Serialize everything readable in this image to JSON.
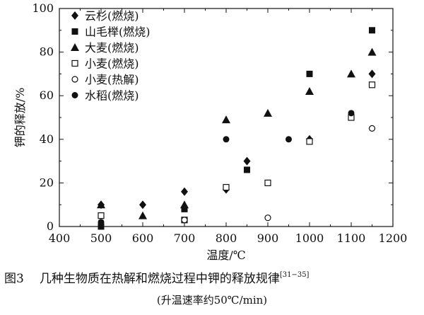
{
  "chart_data": {
    "type": "scatter",
    "title": "",
    "xlabel": "温度/℃",
    "ylabel": "钾的释放/%",
    "xlim": [
      400,
      1200
    ],
    "ylim": [
      0,
      100
    ],
    "xticks": [
      400,
      500,
      600,
      700,
      800,
      900,
      1000,
      1100,
      1200
    ],
    "yticks": [
      0,
      20,
      40,
      60,
      80,
      100
    ],
    "grid": false,
    "legend_position": "top-left",
    "series": [
      {
        "name": "云杉(燃烧)",
        "marker": "filled-diamond",
        "points": [
          [
            500,
            10
          ],
          [
            600,
            10
          ],
          [
            700,
            16
          ],
          [
            800,
            17
          ],
          [
            850,
            30
          ],
          [
            1000,
            40
          ],
          [
            1150,
            70
          ]
        ]
      },
      {
        "name": "山毛榉(燃烧)",
        "marker": "filled-square",
        "points": [
          [
            500,
            0
          ],
          [
            700,
            8
          ],
          [
            850,
            26
          ],
          [
            1000,
            70
          ],
          [
            1150,
            90
          ]
        ]
      },
      {
        "name": "大麦(燃烧)",
        "marker": "filled-triangle",
        "points": [
          [
            500,
            10
          ],
          [
            600,
            5
          ],
          [
            700,
            10
          ],
          [
            800,
            49
          ],
          [
            900,
            52
          ],
          [
            1000,
            62
          ],
          [
            1100,
            70
          ],
          [
            1150,
            80
          ]
        ]
      },
      {
        "name": "小麦(燃烧)",
        "marker": "open-square",
        "points": [
          [
            500,
            5
          ],
          [
            700,
            3
          ],
          [
            800,
            18
          ],
          [
            900,
            20
          ],
          [
            1000,
            39
          ],
          [
            1100,
            50
          ],
          [
            1150,
            65
          ]
        ]
      },
      {
        "name": "小麦(热解)",
        "marker": "open-circle",
        "points": [
          [
            700,
            3
          ],
          [
            900,
            4
          ],
          [
            1150,
            45
          ]
        ]
      },
      {
        "name": "水稻(燃烧)",
        "marker": "filled-circle",
        "points": [
          [
            500,
            2
          ],
          [
            800,
            40
          ],
          [
            950,
            40
          ],
          [
            1100,
            52
          ]
        ]
      }
    ]
  },
  "caption": {
    "number": "图3",
    "text": "几种生物质在热解和燃烧过程中钾的释放规律",
    "ref": "[31−35]",
    "subtitle": "(升温速率约50℃/min)"
  }
}
